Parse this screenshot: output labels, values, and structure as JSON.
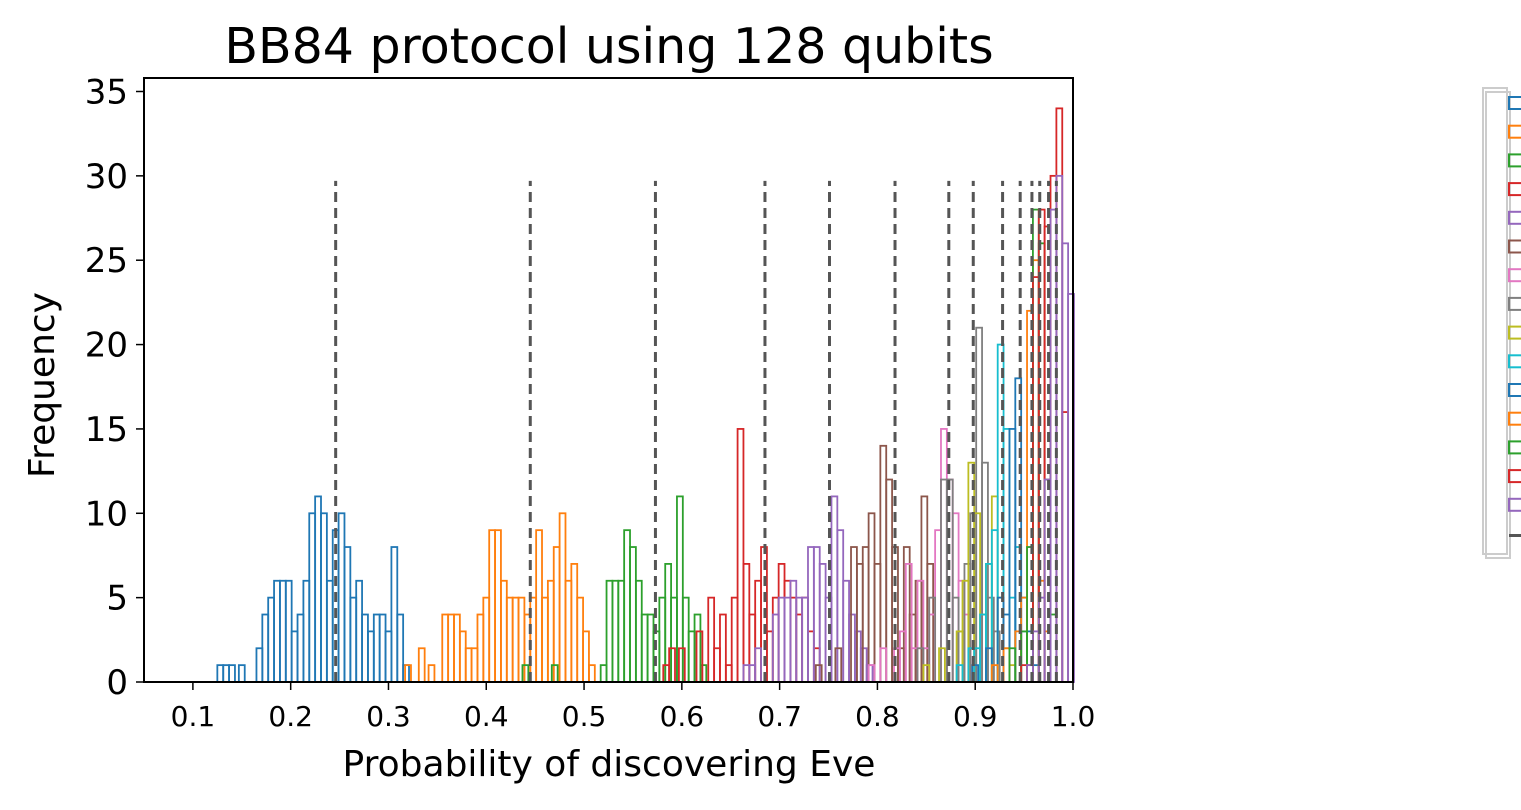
{
  "chart_data": {
    "type": "bar",
    "title": "BB84 protocol using 128 qubits",
    "xlabel": "Probability of discovering Eve",
    "ylabel": "Frequency",
    "xlim": [
      0.05,
      1.0
    ],
    "ylim": [
      0,
      35.8
    ],
    "x_ticks": [
      "0.1",
      "0.2",
      "0.3",
      "0.4",
      "0.5",
      "0.6",
      "0.7",
      "0.8",
      "0.9",
      "1.0"
    ],
    "y_ticks": [
      "0",
      "5",
      "10",
      "15",
      "20",
      "25",
      "30",
      "35"
    ],
    "grid": false,
    "legend_position": "right",
    "bin_width": 0.006,
    "series": [
      {
        "color": "#1f77b4",
        "x": [
          0.128,
          0.134,
          0.14,
          0.15,
          0.168,
          0.174,
          0.18,
          0.186,
          0.192,
          0.198,
          0.204,
          0.21,
          0.216,
          0.222,
          0.228,
          0.234,
          0.24,
          0.246,
          0.252,
          0.258,
          0.264,
          0.27,
          0.276,
          0.282,
          0.288,
          0.294,
          0.3,
          0.306,
          0.312,
          0.318
        ],
        "values": [
          1,
          1,
          1,
          1,
          2,
          4,
          5,
          6,
          6,
          6,
          3,
          4,
          6,
          10,
          11,
          10,
          6,
          9,
          10,
          8,
          5,
          6,
          4,
          3,
          4,
          4,
          3,
          8,
          4,
          1
        ]
      },
      {
        "color": "#ff7f0e",
        "x": [
          0.32,
          0.334,
          0.344,
          0.358,
          0.364,
          0.37,
          0.376,
          0.382,
          0.388,
          0.394,
          0.4,
          0.406,
          0.412,
          0.418,
          0.424,
          0.43,
          0.436,
          0.442,
          0.448,
          0.454,
          0.46,
          0.466,
          0.472,
          0.478,
          0.484,
          0.49,
          0.496,
          0.502,
          0.508
        ],
        "values": [
          1,
          2,
          1,
          4,
          4,
          4,
          3,
          2,
          2,
          4,
          5,
          9,
          9,
          6,
          5,
          5,
          5,
          4,
          5,
          9,
          5,
          6,
          8,
          10,
          6,
          7,
          5,
          3,
          1
        ]
      },
      {
        "color": "#2ca02c",
        "x": [
          0.44,
          0.47,
          0.52,
          0.526,
          0.532,
          0.538,
          0.544,
          0.55,
          0.556,
          0.562,
          0.568,
          0.574,
          0.58,
          0.586,
          0.592,
          0.598,
          0.604,
          0.61,
          0.616,
          0.622
        ],
        "values": [
          1,
          1,
          1,
          6,
          6,
          6,
          9,
          8,
          6,
          4,
          4,
          3,
          5,
          7,
          5,
          11,
          5,
          3,
          4,
          1
        ]
      },
      {
        "color": "#d62728",
        "x": [
          0.584,
          0.59,
          0.6,
          0.618,
          0.63,
          0.636,
          0.642,
          0.648,
          0.654,
          0.66,
          0.666,
          0.672,
          0.678,
          0.684,
          0.69,
          0.696,
          0.702,
          0.708,
          0.714,
          0.72,
          0.726,
          0.732,
          0.738
        ],
        "values": [
          1,
          2,
          2,
          3,
          5,
          2,
          4,
          1,
          5,
          15,
          7,
          4,
          6,
          8,
          3,
          5,
          7,
          6,
          5,
          4,
          5,
          3,
          2
        ]
      },
      {
        "color": "#9467bd",
        "x": [
          0.666,
          0.672,
          0.678,
          0.696,
          0.702,
          0.708,
          0.714,
          0.72,
          0.726,
          0.732,
          0.738,
          0.744,
          0.75,
          0.756,
          0.762,
          0.768,
          0.774,
          0.78,
          0.786,
          0.792
        ],
        "values": [
          1,
          1,
          2,
          4,
          5,
          5,
          6,
          5,
          5,
          8,
          8,
          7,
          5,
          11,
          9,
          6,
          4,
          3,
          2,
          1
        ]
      },
      {
        "color": "#8c564b",
        "x": [
          0.74,
          0.76,
          0.776,
          0.782,
          0.788,
          0.794,
          0.8,
          0.806,
          0.812,
          0.818,
          0.824,
          0.83,
          0.836,
          0.842,
          0.848,
          0.854
        ],
        "values": [
          1,
          2,
          8,
          7,
          8,
          10,
          7,
          14,
          12,
          8,
          2,
          8,
          4,
          6,
          11,
          7
        ]
      },
      {
        "color": "#e377c2",
        "x": [
          0.794,
          0.806,
          0.82,
          0.826,
          0.832,
          0.838,
          0.844,
          0.85,
          0.856,
          0.862,
          0.868,
          0.874,
          0.88,
          0.886,
          0.892,
          0.898
        ],
        "values": [
          1,
          2,
          2,
          3,
          7,
          2,
          6,
          2,
          4,
          9,
          15,
          12,
          10,
          6,
          4,
          2
        ]
      },
      {
        "color": "#7f7f7f",
        "x": [
          0.844,
          0.856,
          0.868,
          0.874,
          0.88,
          0.886,
          0.892,
          0.898,
          0.904,
          0.91,
          0.916,
          0.922
        ],
        "values": [
          2,
          5,
          12,
          12,
          5,
          3,
          7,
          10,
          21,
          13,
          5,
          3
        ]
      },
      {
        "color": "#bcbd22",
        "x": [
          0.85,
          0.866,
          0.884,
          0.89,
          0.896,
          0.902,
          0.908,
          0.914,
          0.92,
          0.926,
          0.932,
          0.938
        ],
        "values": [
          1,
          2,
          3,
          6,
          13,
          10,
          4,
          7,
          11,
          5,
          2,
          1
        ]
      },
      {
        "color": "#17becf",
        "x": [
          0.884,
          0.896,
          0.902,
          0.908,
          0.914,
          0.92,
          0.926,
          0.932,
          0.938,
          0.944,
          0.95
        ],
        "values": [
          1,
          2,
          2,
          4,
          7,
          9,
          20,
          15,
          5,
          8,
          3
        ]
      },
      {
        "color": "#1f77b4",
        "x": [
          0.9,
          0.914,
          0.926,
          0.932,
          0.938,
          0.944,
          0.95,
          0.956,
          0.962
        ],
        "values": [
          1,
          2,
          5,
          4,
          15,
          18,
          5,
          3,
          1
        ]
      },
      {
        "color": "#ff7f0e",
        "x": [
          0.92,
          0.932,
          0.944,
          0.95,
          0.956,
          0.962,
          0.968,
          0.974
        ],
        "values": [
          1,
          2,
          3,
          5,
          22,
          25,
          6,
          3
        ]
      },
      {
        "color": "#2ca02c",
        "x": [
          0.938,
          0.95,
          0.956,
          0.962,
          0.968,
          0.974,
          0.98
        ],
        "values": [
          2,
          3,
          8,
          28,
          26,
          12,
          4
        ]
      },
      {
        "color": "#d62728",
        "x": [
          0.95,
          0.956,
          0.962,
          0.968,
          0.974,
          0.98,
          0.986,
          0.992
        ],
        "values": [
          1,
          1,
          24,
          28,
          27,
          30,
          34,
          16
        ]
      },
      {
        "color": "#9467bd",
        "x": [
          0.956,
          0.962,
          0.968,
          0.974,
          0.98,
          0.986,
          0.992,
          0.998
        ],
        "values": [
          1,
          3,
          5,
          12,
          28,
          30,
          26,
          23
        ]
      }
    ],
    "vlines": [
      0.246,
      0.445,
      0.573,
      0.685,
      0.751,
      0.818,
      0.873,
      0.898,
      0.928,
      0.946,
      0.958,
      0.966,
      0.975,
      0.983
    ],
    "vline_top": 29.7,
    "vline_color": "#555555",
    "legend_entries": [
      {
        "color": "#1f77b4"
      },
      {
        "color": "#ff7f0e"
      },
      {
        "color": "#2ca02c"
      },
      {
        "color": "#d62728"
      },
      {
        "color": "#9467bd"
      },
      {
        "color": "#8c564b"
      },
      {
        "color": "#e377c2"
      },
      {
        "color": "#7f7f7f"
      },
      {
        "color": "#bcbd22"
      },
      {
        "color": "#17becf"
      },
      {
        "color": "#1f77b4"
      },
      {
        "color": "#ff7f0e"
      },
      {
        "color": "#2ca02c"
      },
      {
        "color": "#d62728"
      },
      {
        "color": "#9467bd"
      },
      {
        "color": "#555555",
        "dashed": true
      }
    ]
  }
}
